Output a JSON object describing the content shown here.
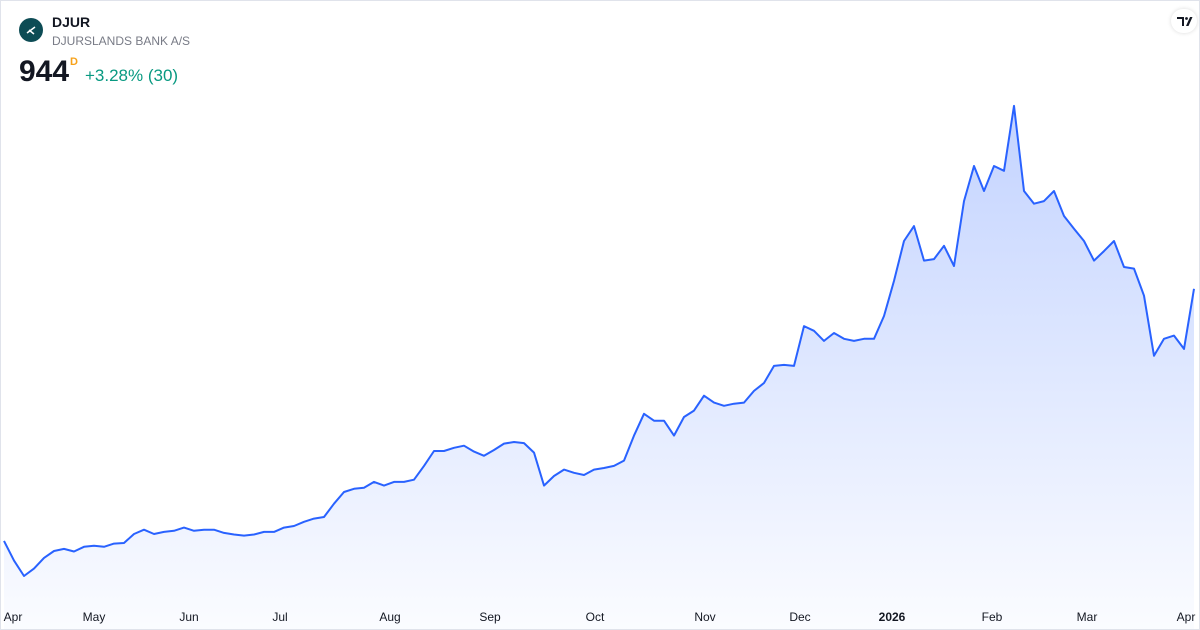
{
  "header": {
    "symbol": "DJUR",
    "name": "DJURSLANDS BANK A/S",
    "price": 944,
    "interval": "D",
    "change": "+3.28% (30)"
  },
  "chart_data": {
    "type": "area",
    "color": "#2962ff",
    "values": [
      470,
      433,
      404,
      418,
      438,
      451,
      455,
      450,
      459,
      461,
      459,
      465,
      466,
      483,
      491,
      483,
      487,
      489,
      495,
      489,
      491,
      491,
      485,
      482,
      480,
      482,
      487,
      487,
      495,
      498,
      506,
      512,
      515,
      540,
      562,
      568,
      570,
      581,
      574,
      581,
      581,
      585,
      611,
      639,
      639,
      645,
      649,
      638,
      630,
      641,
      653,
      656,
      654,
      636,
      574,
      592,
      604,
      598,
      594,
      604,
      607,
      611,
      621,
      668,
      709,
      696,
      696,
      668,
      703,
      715,
      743,
      730,
      724,
      728,
      730,
      752,
      767,
      799,
      801,
      799,
      874,
      865,
      846,
      861,
      850,
      846,
      850,
      850,
      893,
      959,
      1034,
      1062,
      997,
      1000,
      1025,
      987,
      1109,
      1175,
      1128,
      1175,
      1166,
      1288,
      1128,
      1104,
      1109,
      1128,
      1081,
      1057,
      1034,
      997,
      1015,
      1034,
      985,
      982,
      931,
      818,
      850,
      856,
      831,
      944
    ],
    "xlim": [
      0,
      119
    ],
    "ylim": [
      357,
      1316
    ],
    "xticks": [
      {
        "value": 0.8,
        "label": "Apr"
      },
      {
        "value": 9,
        "label": "May"
      },
      {
        "value": 18.5,
        "label": "Jun"
      },
      {
        "value": 27.6,
        "label": "Jul"
      },
      {
        "value": 38.6,
        "label": "Aug"
      },
      {
        "value": 48.6,
        "label": "Sep"
      },
      {
        "value": 59.1,
        "label": "Oct"
      },
      {
        "value": 70.1,
        "label": "Nov"
      },
      {
        "value": 79.6,
        "label": "Dec"
      },
      {
        "value": 88.8,
        "label": "2026"
      },
      {
        "value": 98.8,
        "label": "Feb"
      },
      {
        "value": 108.3,
        "label": "Mar"
      },
      {
        "value": 118.5,
        "label": "Apr"
      }
    ]
  }
}
